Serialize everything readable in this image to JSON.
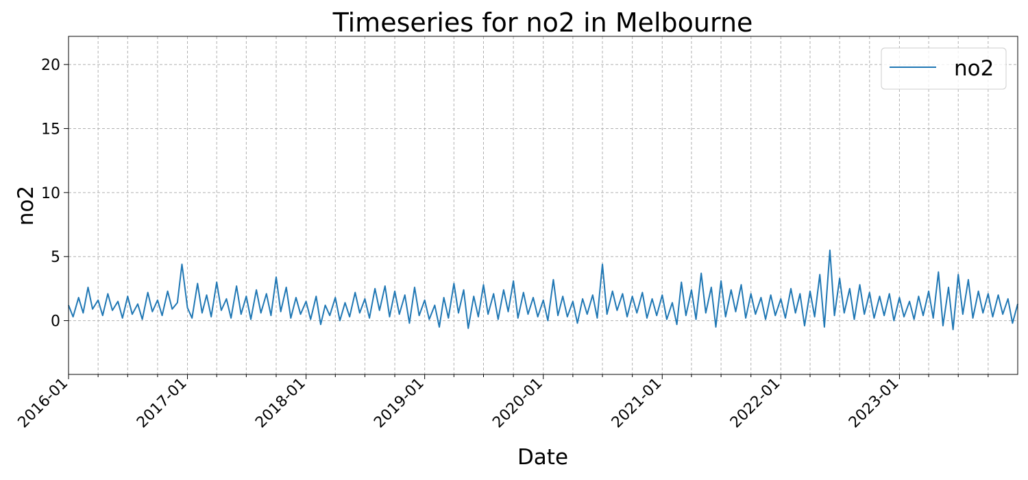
{
  "chart_data": {
    "type": "line",
    "title": "Timeseries for no2 in Melbourne",
    "xlabel": "Date",
    "ylabel": "no2",
    "x_range": [
      "2016-01-01",
      "2023-12-31"
    ],
    "ylim": [
      -4.2,
      22.2
    ],
    "yticks": [
      0,
      5,
      10,
      15,
      20
    ],
    "xticks": [
      "2016-01",
      "2017-01",
      "2018-01",
      "2019-01",
      "2020-01",
      "2021-01",
      "2022-01",
      "2023-01"
    ],
    "minor_xtick_interval_months": 3,
    "grid": true,
    "legend_position": "top-right",
    "series": [
      {
        "name": "no2",
        "color": "#1f77b4",
        "points": [
          [
            "2016-01-01",
            1.2
          ],
          [
            "2016-01-15",
            0.3
          ],
          [
            "2016-02-01",
            1.8
          ],
          [
            "2016-02-15",
            0.6
          ],
          [
            "2016-03-01",
            2.6
          ],
          [
            "2016-03-15",
            0.9
          ],
          [
            "2016-04-01",
            1.6
          ],
          [
            "2016-04-15",
            0.4
          ],
          [
            "2016-05-01",
            2.1
          ],
          [
            "2016-05-15",
            0.8
          ],
          [
            "2016-06-01",
            1.5
          ],
          [
            "2016-06-15",
            0.2
          ],
          [
            "2016-07-01",
            1.9
          ],
          [
            "2016-07-15",
            0.5
          ],
          [
            "2016-08-01",
            1.3
          ],
          [
            "2016-08-15",
            0.1
          ],
          [
            "2016-09-01",
            2.2
          ],
          [
            "2016-09-15",
            0.7
          ],
          [
            "2016-10-01",
            1.6
          ],
          [
            "2016-10-15",
            0.4
          ],
          [
            "2016-11-01",
            2.3
          ],
          [
            "2016-11-15",
            0.9
          ],
          [
            "2016-12-01",
            1.4
          ],
          [
            "2016-12-15",
            4.4
          ],
          [
            "2017-01-01",
            1.0
          ],
          [
            "2017-01-15",
            0.2
          ],
          [
            "2017-02-01",
            2.9
          ],
          [
            "2017-02-15",
            0.6
          ],
          [
            "2017-03-01",
            2.0
          ],
          [
            "2017-03-15",
            0.3
          ],
          [
            "2017-04-01",
            3.0
          ],
          [
            "2017-04-15",
            0.8
          ],
          [
            "2017-05-01",
            1.7
          ],
          [
            "2017-05-15",
            0.2
          ],
          [
            "2017-06-01",
            2.7
          ],
          [
            "2017-06-15",
            0.5
          ],
          [
            "2017-07-01",
            1.9
          ],
          [
            "2017-07-15",
            0.1
          ],
          [
            "2017-08-01",
            2.4
          ],
          [
            "2017-08-15",
            0.6
          ],
          [
            "2017-09-01",
            2.1
          ],
          [
            "2017-09-15",
            0.4
          ],
          [
            "2017-10-01",
            3.4
          ],
          [
            "2017-10-15",
            0.7
          ],
          [
            "2017-11-01",
            2.6
          ],
          [
            "2017-11-15",
            0.2
          ],
          [
            "2017-12-01",
            1.8
          ],
          [
            "2017-12-15",
            0.5
          ],
          [
            "2018-01-01",
            1.5
          ],
          [
            "2018-01-15",
            0.1
          ],
          [
            "2018-02-01",
            1.9
          ],
          [
            "2018-02-15",
            -0.3
          ],
          [
            "2018-03-01",
            1.2
          ],
          [
            "2018-03-15",
            0.4
          ],
          [
            "2018-04-01",
            1.8
          ],
          [
            "2018-04-15",
            0.0
          ],
          [
            "2018-05-01",
            1.4
          ],
          [
            "2018-05-15",
            0.3
          ],
          [
            "2018-06-01",
            2.2
          ],
          [
            "2018-06-15",
            0.6
          ],
          [
            "2018-07-01",
            1.7
          ],
          [
            "2018-07-15",
            0.2
          ],
          [
            "2018-08-01",
            2.5
          ],
          [
            "2018-08-15",
            0.8
          ],
          [
            "2018-09-01",
            2.7
          ],
          [
            "2018-09-15",
            0.3
          ],
          [
            "2018-10-01",
            2.3
          ],
          [
            "2018-10-15",
            0.5
          ],
          [
            "2018-11-01",
            2.0
          ],
          [
            "2018-11-15",
            -0.2
          ],
          [
            "2018-12-01",
            2.6
          ],
          [
            "2018-12-15",
            0.4
          ],
          [
            "2019-01-01",
            1.6
          ],
          [
            "2019-01-15",
            0.1
          ],
          [
            "2019-02-01",
            1.2
          ],
          [
            "2019-02-15",
            -0.5
          ],
          [
            "2019-03-01",
            1.8
          ],
          [
            "2019-03-15",
            0.2
          ],
          [
            "2019-04-01",
            2.9
          ],
          [
            "2019-04-15",
            0.6
          ],
          [
            "2019-05-01",
            2.4
          ],
          [
            "2019-05-15",
            -0.6
          ],
          [
            "2019-06-01",
            1.9
          ],
          [
            "2019-06-15",
            0.3
          ],
          [
            "2019-07-01",
            2.8
          ],
          [
            "2019-07-15",
            0.5
          ],
          [
            "2019-08-01",
            2.1
          ],
          [
            "2019-08-15",
            0.1
          ],
          [
            "2019-09-01",
            2.4
          ],
          [
            "2019-09-15",
            0.7
          ],
          [
            "2019-10-01",
            3.1
          ],
          [
            "2019-10-15",
            0.2
          ],
          [
            "2019-11-01",
            2.2
          ],
          [
            "2019-11-15",
            0.5
          ],
          [
            "2019-12-01",
            1.8
          ],
          [
            "2019-12-15",
            0.3
          ],
          [
            "2020-01-01",
            1.6
          ],
          [
            "2020-01-15",
            0.0
          ],
          [
            "2020-02-01",
            3.2
          ],
          [
            "2020-02-15",
            0.4
          ],
          [
            "2020-03-01",
            1.9
          ],
          [
            "2020-03-15",
            0.3
          ],
          [
            "2020-04-01",
            1.5
          ],
          [
            "2020-04-15",
            -0.2
          ],
          [
            "2020-05-01",
            1.7
          ],
          [
            "2020-05-15",
            0.5
          ],
          [
            "2020-06-01",
            2.0
          ],
          [
            "2020-06-15",
            0.2
          ],
          [
            "2020-07-01",
            4.4
          ],
          [
            "2020-07-15",
            0.5
          ],
          [
            "2020-08-01",
            2.3
          ],
          [
            "2020-08-15",
            0.8
          ],
          [
            "2020-09-01",
            2.1
          ],
          [
            "2020-09-15",
            0.3
          ],
          [
            "2020-10-01",
            1.9
          ],
          [
            "2020-10-15",
            0.6
          ],
          [
            "2020-11-01",
            2.2
          ],
          [
            "2020-11-15",
            0.2
          ],
          [
            "2020-12-01",
            1.7
          ],
          [
            "2020-12-15",
            0.4
          ],
          [
            "2021-01-01",
            2.0
          ],
          [
            "2021-01-15",
            0.1
          ],
          [
            "2021-02-01",
            1.4
          ],
          [
            "2021-02-15",
            -0.3
          ],
          [
            "2021-03-01",
            3.0
          ],
          [
            "2021-03-15",
            0.4
          ],
          [
            "2021-04-01",
            2.4
          ],
          [
            "2021-04-15",
            0.1
          ],
          [
            "2021-05-01",
            3.7
          ],
          [
            "2021-05-15",
            0.6
          ],
          [
            "2021-06-01",
            2.6
          ],
          [
            "2021-06-15",
            -0.5
          ],
          [
            "2021-07-01",
            3.1
          ],
          [
            "2021-07-15",
            0.3
          ],
          [
            "2021-08-01",
            2.4
          ],
          [
            "2021-08-15",
            0.7
          ],
          [
            "2021-09-01",
            2.8
          ],
          [
            "2021-09-15",
            0.2
          ],
          [
            "2021-10-01",
            2.1
          ],
          [
            "2021-10-15",
            0.5
          ],
          [
            "2021-11-01",
            1.8
          ],
          [
            "2021-11-15",
            0.1
          ],
          [
            "2021-12-01",
            2.0
          ],
          [
            "2021-12-15",
            0.4
          ],
          [
            "2022-01-01",
            1.7
          ],
          [
            "2022-01-15",
            0.2
          ],
          [
            "2022-02-01",
            2.5
          ],
          [
            "2022-02-15",
            0.6
          ],
          [
            "2022-03-01",
            2.1
          ],
          [
            "2022-03-15",
            -0.4
          ],
          [
            "2022-04-01",
            2.3
          ],
          [
            "2022-04-15",
            0.3
          ],
          [
            "2022-05-01",
            3.6
          ],
          [
            "2022-05-15",
            -0.5
          ],
          [
            "2022-06-01",
            5.5
          ],
          [
            "2022-06-15",
            0.4
          ],
          [
            "2022-07-01",
            3.3
          ],
          [
            "2022-07-15",
            0.6
          ],
          [
            "2022-08-01",
            2.5
          ],
          [
            "2022-08-15",
            0.1
          ],
          [
            "2022-09-01",
            2.8
          ],
          [
            "2022-09-15",
            0.5
          ],
          [
            "2022-10-01",
            2.2
          ],
          [
            "2022-10-15",
            0.2
          ],
          [
            "2022-11-01",
            1.9
          ],
          [
            "2022-11-15",
            0.4
          ],
          [
            "2022-12-01",
            2.1
          ],
          [
            "2022-12-15",
            0.0
          ],
          [
            "2023-01-01",
            1.8
          ],
          [
            "2023-01-15",
            0.3
          ],
          [
            "2023-02-01",
            1.5
          ],
          [
            "2023-02-15",
            0.1
          ],
          [
            "2023-03-01",
            1.9
          ],
          [
            "2023-03-15",
            0.4
          ],
          [
            "2023-04-01",
            2.3
          ],
          [
            "2023-04-15",
            0.2
          ],
          [
            "2023-05-01",
            3.8
          ],
          [
            "2023-05-15",
            -0.4
          ],
          [
            "2023-06-01",
            2.6
          ],
          [
            "2023-06-15",
            -0.7
          ],
          [
            "2023-07-01",
            3.6
          ],
          [
            "2023-07-15",
            0.5
          ],
          [
            "2023-08-01",
            3.2
          ],
          [
            "2023-08-15",
            0.2
          ],
          [
            "2023-09-01",
            2.3
          ],
          [
            "2023-09-15",
            0.6
          ],
          [
            "2023-10-01",
            2.1
          ],
          [
            "2023-10-15",
            0.3
          ],
          [
            "2023-11-01",
            2.0
          ],
          [
            "2023-11-15",
            0.5
          ],
          [
            "2023-12-01",
            1.7
          ],
          [
            "2023-12-15",
            -0.2
          ],
          [
            "2023-12-31",
            1.3
          ]
        ]
      }
    ]
  }
}
